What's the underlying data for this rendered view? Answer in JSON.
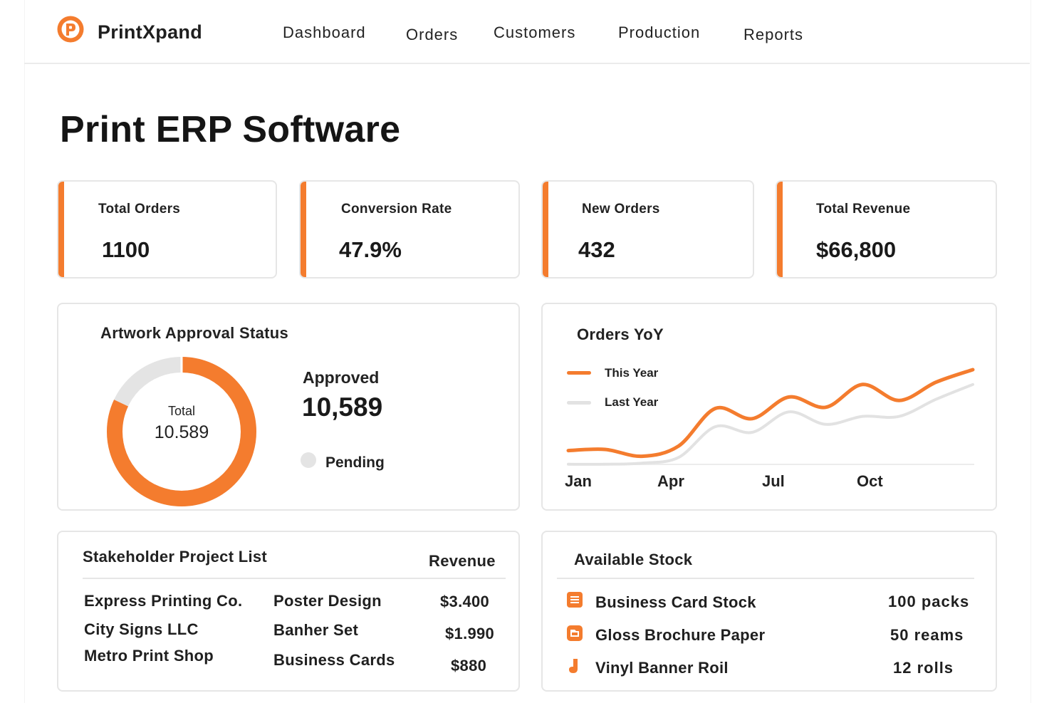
{
  "app": {
    "brand": "PrintXpand",
    "accent": "#f47c2e"
  },
  "nav": {
    "items": [
      {
        "label": "Dashboard"
      },
      {
        "label": "Orders"
      },
      {
        "label": "Customers"
      },
      {
        "label": "Production"
      },
      {
        "label": "Reports"
      }
    ]
  },
  "page": {
    "title": "Print ERP Software"
  },
  "kpis": [
    {
      "label": "Total Orders",
      "value": "1100"
    },
    {
      "label": "Conversion Rate",
      "value": "47.9%"
    },
    {
      "label": "New Orders",
      "value": "432"
    },
    {
      "label": "Total Revenue",
      "value": "$66,800"
    }
  ],
  "artwork": {
    "title": "Artwork Approval Status",
    "center_label": "Total",
    "center_value": "10.589",
    "approved_label": "Approved",
    "approved_value": "10,589",
    "pending_label": "Pending",
    "approved_fraction": 0.82,
    "approved_color": "#f47c2e",
    "pending_color": "#e4e4e4"
  },
  "orders_yoy": {
    "title": "Orders YoY",
    "legend": [
      {
        "name": "This Year",
        "color": "#f47c2e"
      },
      {
        "name": "Last Year",
        "color": "#e2e2e2"
      }
    ],
    "x_ticks": [
      "Jan",
      "Apr",
      "Jul",
      "Oct"
    ]
  },
  "chart_data": {
    "type": "line",
    "title": "Orders YoY",
    "xlabel": "",
    "ylabel": "",
    "x": [
      "Jan",
      "Feb",
      "Mar",
      "Apr",
      "May",
      "Jun",
      "Jul",
      "Aug",
      "Sep",
      "Oct",
      "Nov",
      "Dec"
    ],
    "x_ticks": [
      "Jan",
      "Apr",
      "Jul",
      "Oct"
    ],
    "ylim": [
      0,
      100
    ],
    "grid": false,
    "legend": "top-left",
    "series": [
      {
        "name": "This Year",
        "values": [
          14,
          15,
          9,
          18,
          51,
          42,
          61,
          52,
          72,
          58,
          74,
          85
        ]
      },
      {
        "name": "Last Year",
        "values": [
          2,
          2,
          3,
          8,
          35,
          30,
          48,
          37,
          44,
          44,
          59,
          72
        ]
      }
    ]
  },
  "projects": {
    "title": "Stakeholder Project List",
    "revenue_header": "Revenue",
    "rows": [
      {
        "client": "Express Printing Co.",
        "project": "Poster Design",
        "revenue": "$3.400"
      },
      {
        "client": "City Signs LLC",
        "project": "Banher Set",
        "revenue": "$1.990"
      },
      {
        "client": "Metro Print Shop",
        "project": "Business Cards",
        "revenue": "$880"
      }
    ]
  },
  "stock": {
    "title": "Available Stock",
    "items": [
      {
        "name": "Business Card Stock",
        "qty": "100 packs",
        "icon": "list-doc-icon"
      },
      {
        "name": "Gloss Brochure Paper",
        "qty": "50 reams",
        "icon": "brochure-icon"
      },
      {
        "name": "Vinyl Banner Roil",
        "qty": "12 rolls",
        "icon": "banner-roll-icon"
      }
    ]
  }
}
